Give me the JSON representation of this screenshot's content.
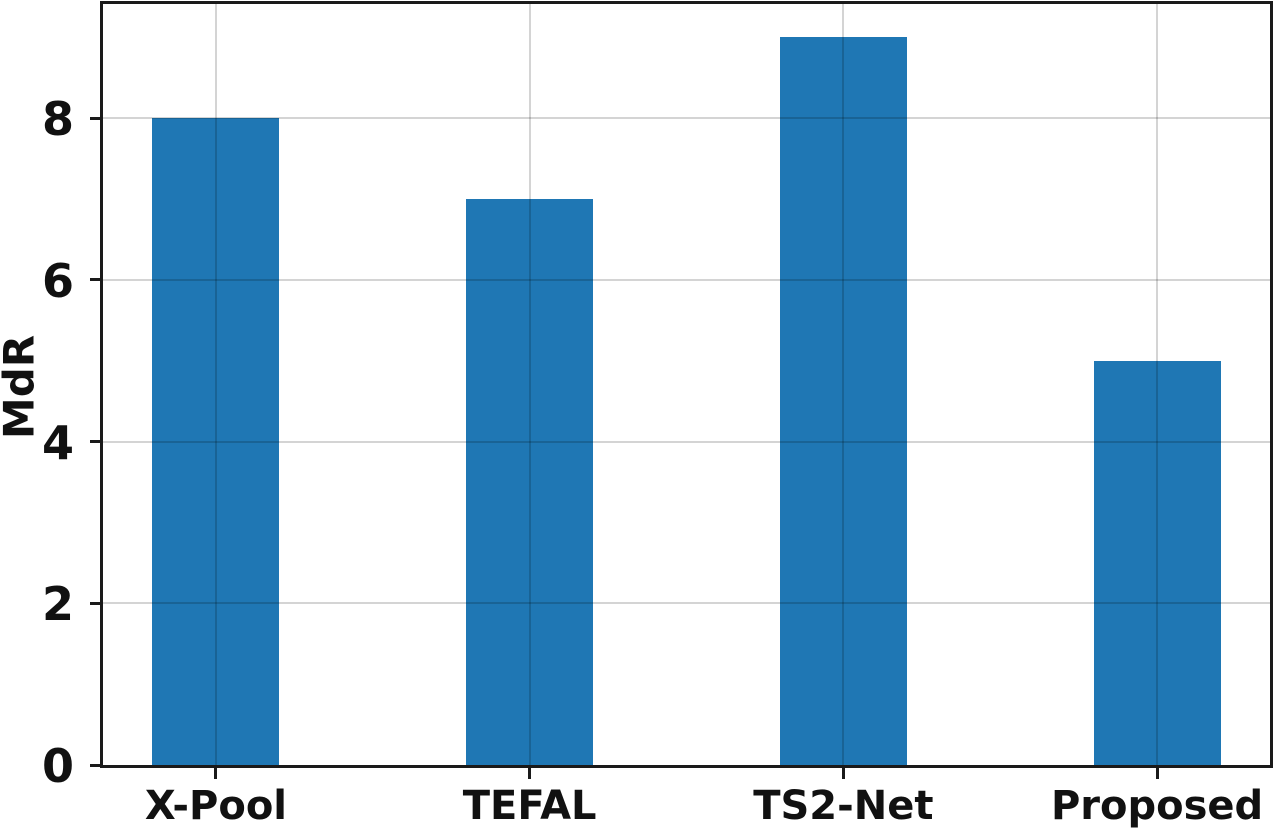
{
  "figure": {
    "background_color": "#ffffff"
  },
  "chart_data": {
    "type": "bar",
    "title": "",
    "categories": [
      "X-Pool",
      "TEFAL",
      "TS2-Net",
      "Proposed"
    ],
    "values": [
      8,
      7,
      9,
      5
    ],
    "xlabel": "",
    "ylabel": "MdR",
    "yticks": [
      0,
      2,
      4,
      6,
      8
    ],
    "ylim": [
      0,
      9.41
    ],
    "xlim": [
      -0.36,
      3.36
    ],
    "bar_width_units": 0.405,
    "bar_color": "#1f77b4",
    "grid": "both",
    "grid_color": "rgba(0,0,0,0.17)",
    "axis_color": "#1a1a1a",
    "tick_label_color": "#111111",
    "legend": "none"
  }
}
